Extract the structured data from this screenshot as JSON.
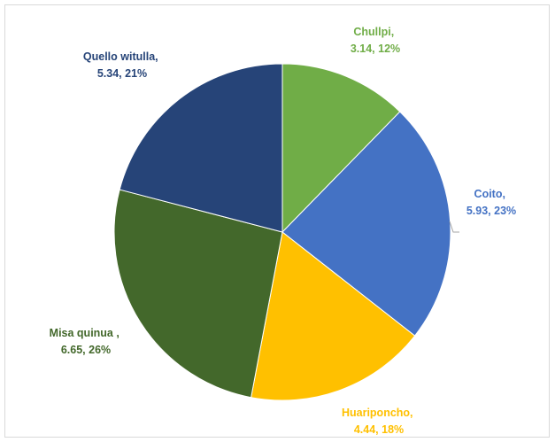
{
  "chart_data": {
    "type": "pie",
    "slices": [
      {
        "label": "Chullpi,",
        "value": 3.14,
        "percent": "12%",
        "value_text": "3.14, 12%",
        "color": "#70AD47",
        "label_color": "#70AD47"
      },
      {
        "label": "Coito,",
        "value": 5.93,
        "percent": "23%",
        "value_text": "5.93, 23%",
        "color": "#4472C4",
        "label_color": "#4472C4"
      },
      {
        "label": "Huariponcho,",
        "value": 4.44,
        "percent": "18%",
        "value_text": "4.44, 18%",
        "color": "#FFC000",
        "label_color": "#FFC000"
      },
      {
        "label": "Misa quinua ,",
        "value": 6.65,
        "percent": "26%",
        "value_text": "6.65, 26%",
        "color": "#43682B",
        "label_color": "#43682B"
      },
      {
        "label": "Quello witulla,",
        "value": 5.34,
        "percent": "21%",
        "value_text": "5.34, 21%",
        "color": "#264478",
        "label_color": "#264478"
      }
    ],
    "start_angle": "12 o'clock",
    "direction": "clockwise",
    "legend": "none"
  }
}
